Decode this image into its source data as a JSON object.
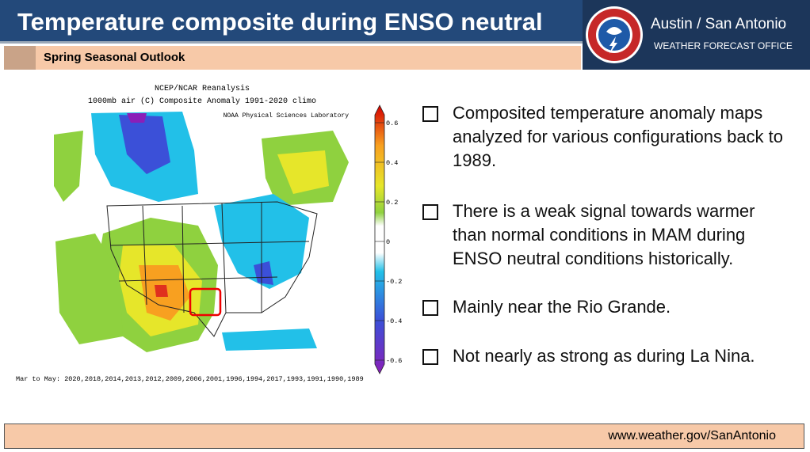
{
  "header": {
    "title": "Temperature composite during ENSO neutral",
    "subtitle": "Spring Seasonal Outlook",
    "office": "Austin / San Antonio",
    "office_sub": "WEATHER FORECAST OFFICE"
  },
  "map": {
    "title": "NCEP/NCAR Reanalysis",
    "subtitle": "1000mb air (C) Composite Anomaly 1991-2020 climo",
    "credit": "NOAA Physical Sciences Laboratory",
    "colorbar_labels": [
      "0.6",
      "0.4",
      "0.2",
      "0",
      "-0.2",
      "-0.4",
      "-0.6"
    ],
    "years": "Mar to May: 2020,2018,2014,2013,2012,2009,2006,2001,1996,1994,2017,1993,1991,1990,1989"
  },
  "bullets": [
    "Composited temperature anomaly maps analyzed for various configurations back to 1989.",
    "There is a weak signal towards warmer than normal conditions in MAM during ENSO neutral conditions historically.",
    "Mainly near the Rio Grande.",
    "Not nearly as strong as during La Nina."
  ],
  "footer": {
    "url": "www.weather.gov/SanAntonio"
  }
}
